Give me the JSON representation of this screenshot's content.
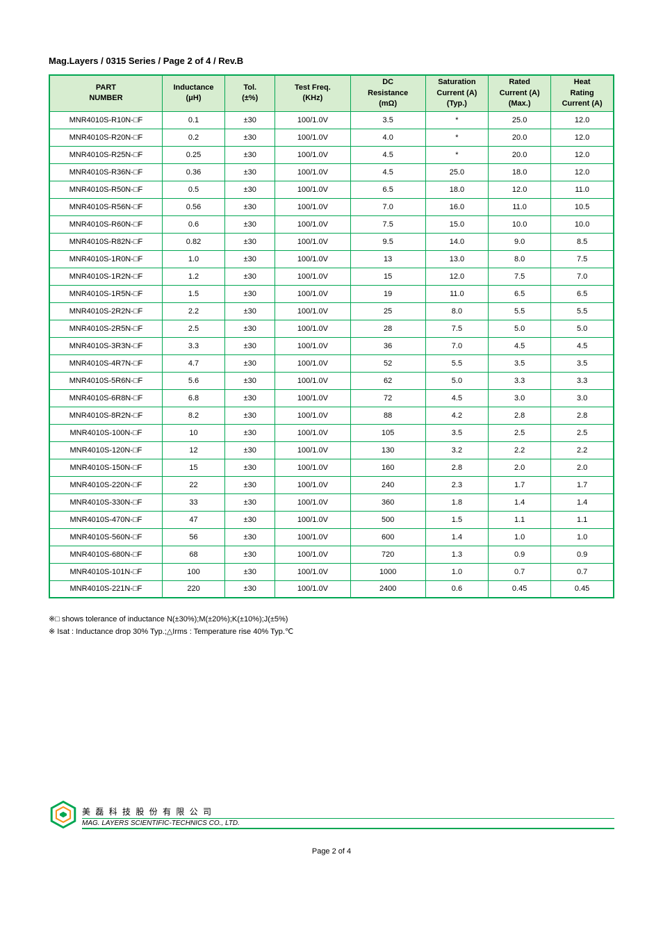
{
  "title": "Mag.Layers / 0315 Series / Page 2 of 4 / Rev.B",
  "table": {
    "columns": [
      "PART\nNUMBER",
      "Inductance\n(μH)",
      "Tol.\n(±%)",
      "Test Freq.\n(KHz)",
      "DC\nResistance\n(mΩ)",
      "Saturation\nCurrent (A)\n(Typ.)",
      "Rated\nCurrent (A)\n(Max.)",
      "Heat\nRating\nCurrent (A)"
    ],
    "rows": [
      [
        "MNR4010S-R10N-□F",
        "0.1",
        "±30",
        "100/1.0V",
        "3.5",
        "*",
        "25.0",
        "12.0"
      ],
      [
        "MNR4010S-R20N-□F",
        "0.2",
        "±30",
        "100/1.0V",
        "4.0",
        "*",
        "20.0",
        "12.0"
      ],
      [
        "MNR4010S-R25N-□F",
        "0.25",
        "±30",
        "100/1.0V",
        "4.5",
        "*",
        "20.0",
        "12.0"
      ],
      [
        "MNR4010S-R36N-□F",
        "0.36",
        "±30",
        "100/1.0V",
        "4.5",
        "25.0",
        "18.0",
        "12.0"
      ],
      [
        "MNR4010S-R50N-□F",
        "0.5",
        "±30",
        "100/1.0V",
        "6.5",
        "18.0",
        "12.0",
        "11.0"
      ],
      [
        "MNR4010S-R56N-□F",
        "0.56",
        "±30",
        "100/1.0V",
        "7.0",
        "16.0",
        "11.0",
        "10.5"
      ],
      [
        "MNR4010S-R60N-□F",
        "0.6",
        "±30",
        "100/1.0V",
        "7.5",
        "15.0",
        "10.0",
        "10.0"
      ],
      [
        "MNR4010S-R82N-□F",
        "0.82",
        "±30",
        "100/1.0V",
        "9.5",
        "14.0",
        "9.0",
        "8.5"
      ],
      [
        "MNR4010S-1R0N-□F",
        "1.0",
        "±30",
        "100/1.0V",
        "13",
        "13.0",
        "8.0",
        "7.5"
      ],
      [
        "MNR4010S-1R2N-□F",
        "1.2",
        "±30",
        "100/1.0V",
        "15",
        "12.0",
        "7.5",
        "7.0"
      ],
      [
        "MNR4010S-1R5N-□F",
        "1.5",
        "±30",
        "100/1.0V",
        "19",
        "11.0",
        "6.5",
        "6.5"
      ],
      [
        "MNR4010S-2R2N-□F",
        "2.2",
        "±30",
        "100/1.0V",
        "25",
        "8.0",
        "5.5",
        "5.5"
      ],
      [
        "MNR4010S-2R5N-□F",
        "2.5",
        "±30",
        "100/1.0V",
        "28",
        "7.5",
        "5.0",
        "5.0"
      ],
      [
        "MNR4010S-3R3N-□F",
        "3.3",
        "±30",
        "100/1.0V",
        "36",
        "7.0",
        "4.5",
        "4.5"
      ],
      [
        "MNR4010S-4R7N-□F",
        "4.7",
        "±30",
        "100/1.0V",
        "52",
        "5.5",
        "3.5",
        "3.5"
      ],
      [
        "MNR4010S-5R6N-□F",
        "5.6",
        "±30",
        "100/1.0V",
        "62",
        "5.0",
        "3.3",
        "3.3"
      ],
      [
        "MNR4010S-6R8N-□F",
        "6.8",
        "±30",
        "100/1.0V",
        "72",
        "4.5",
        "3.0",
        "3.0"
      ],
      [
        "MNR4010S-8R2N-□F",
        "8.2",
        "±30",
        "100/1.0V",
        "88",
        "4.2",
        "2.8",
        "2.8"
      ],
      [
        "MNR4010S-100N-□F",
        "10",
        "±30",
        "100/1.0V",
        "105",
        "3.5",
        "2.5",
        "2.5"
      ],
      [
        "MNR4010S-120N-□F",
        "12",
        "±30",
        "100/1.0V",
        "130",
        "3.2",
        "2.2",
        "2.2"
      ],
      [
        "MNR4010S-150N-□F",
        "15",
        "±30",
        "100/1.0V",
        "160",
        "2.8",
        "2.0",
        "2.0"
      ],
      [
        "MNR4010S-220N-□F",
        "22",
        "±30",
        "100/1.0V",
        "240",
        "2.3",
        "1.7",
        "1.7"
      ],
      [
        "MNR4010S-330N-□F",
        "33",
        "±30",
        "100/1.0V",
        "360",
        "1.8",
        "1.4",
        "1.4"
      ],
      [
        "MNR4010S-470N-□F",
        "47",
        "±30",
        "100/1.0V",
        "500",
        "1.5",
        "1.1",
        "1.1"
      ],
      [
        "MNR4010S-560N-□F",
        "56",
        "±30",
        "100/1.0V",
        "600",
        "1.4",
        "1.0",
        "1.0"
      ],
      [
        "MNR4010S-680N-□F",
        "68",
        "±30",
        "100/1.0V",
        "720",
        "1.3",
        "0.9",
        "0.9"
      ],
      [
        "MNR4010S-101N-□F",
        "100",
        "±30",
        "100/1.0V",
        "1000",
        "1.0",
        "0.7",
        "0.7"
      ],
      [
        "MNR4010S-221N-□F",
        "220",
        "±30",
        "100/1.0V",
        "2400",
        "0.6",
        "0.45",
        "0.45"
      ]
    ]
  },
  "notes": {
    "line1": "※□ shows tolerance of inductance N(±30%);M(±20%);K(±10%);J(±5%)",
    "line2": "※ Isat : Inductance drop 30% Typ.;△Irms : Temperature rise 40% Typ.℃"
  },
  "footer": {
    "company_cn": "美 磊 科 技 股 份 有 限 公 司",
    "company_en": "MAG. LAYERS SCIENTIFIC-TECHNICS CO., LTD.",
    "page": "Page 2 of 4"
  },
  "logo_colors": {
    "outer": "#00a651",
    "inner": "#f7941e"
  }
}
